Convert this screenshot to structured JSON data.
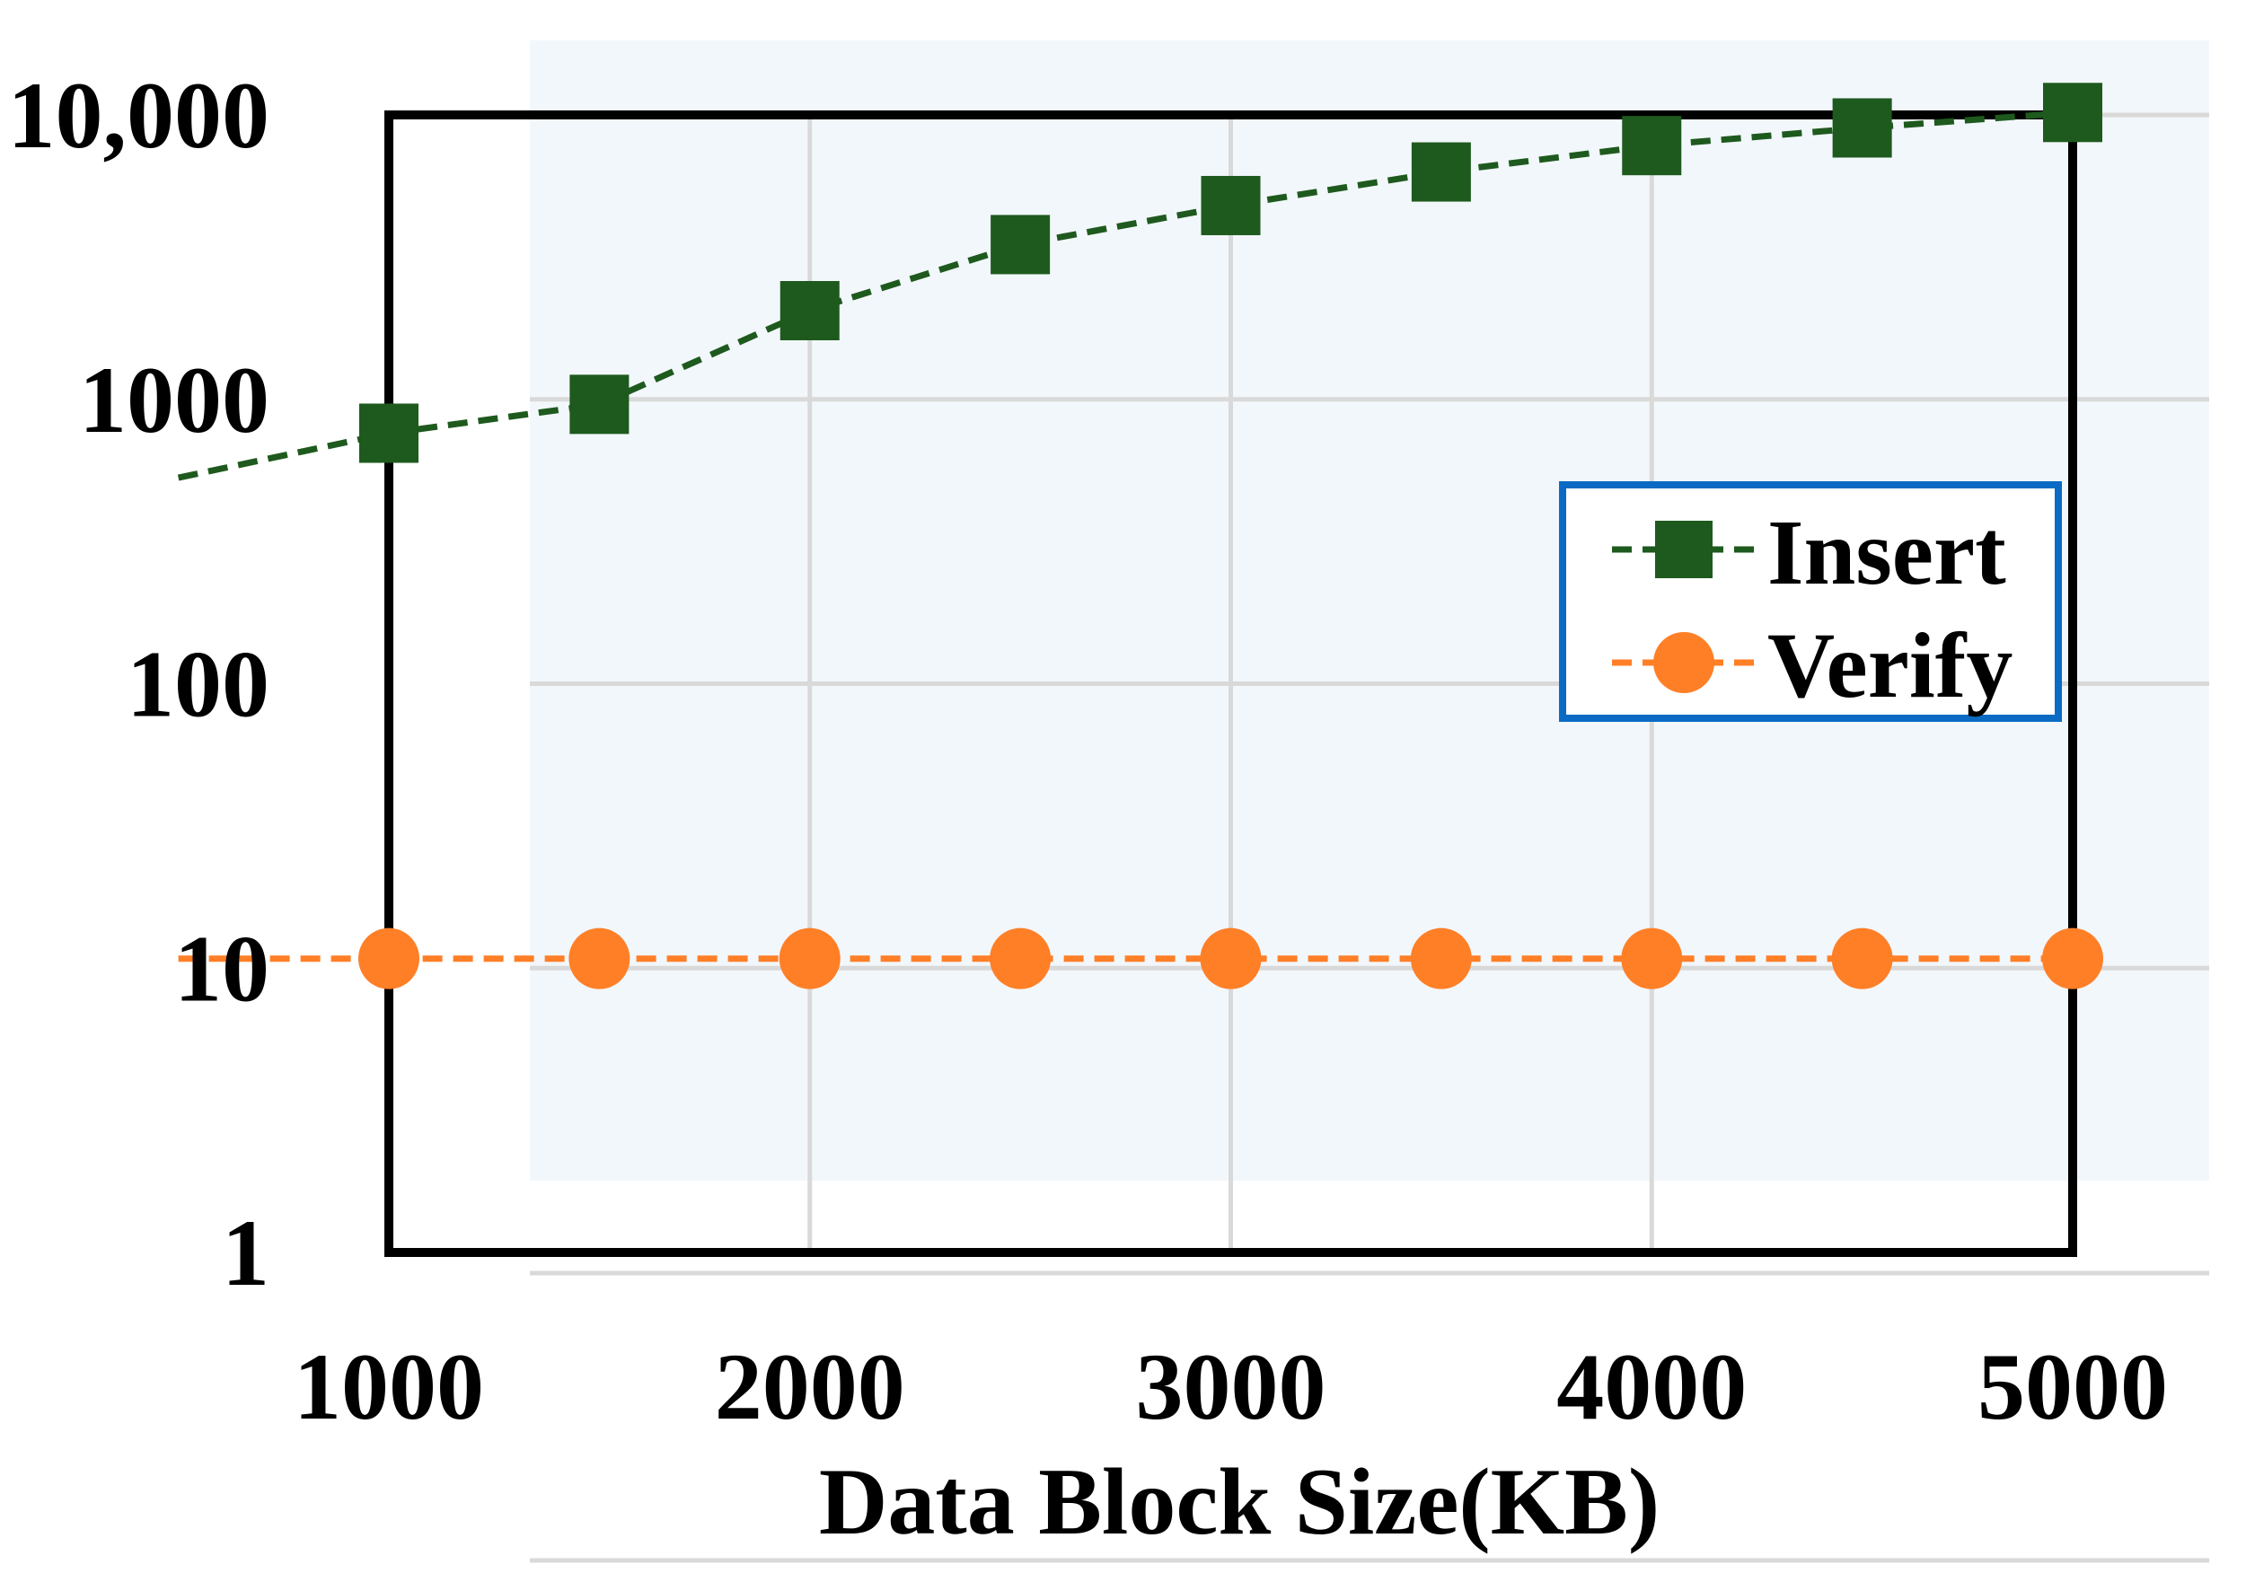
{
  "chart_data": {
    "type": "line",
    "title": "",
    "xlabel": "Data Block Size(KB)",
    "ylabel": "",
    "yscale": "log",
    "xlim": [
      1000,
      5000
    ],
    "ylim": [
      1,
      10000
    ],
    "x_ticks": [
      1000,
      2000,
      3000,
      4000,
      5000
    ],
    "x_tick_labels": [
      "1000",
      "2000",
      "3000",
      "4000",
      "5000"
    ],
    "y_ticks": [
      1,
      10,
      100,
      1000,
      10000
    ],
    "y_tick_labels": [
      "1",
      "10",
      "100",
      "1000",
      "10,000"
    ],
    "grid": true,
    "legend_position": "right",
    "x": [
      1000,
      1500,
      2000,
      2500,
      3000,
      3500,
      4000,
      4500,
      5000
    ],
    "series": [
      {
        "name": "Insert",
        "color": "#1e5a1e",
        "marker": "square",
        "line": "dashed",
        "values": [
          760,
          960,
          2050,
          3500,
          4800,
          6300,
          7800,
          9000,
          10200
        ],
        "trend_start": {
          "x": 500,
          "y": 530
        }
      },
      {
        "name": "Verify",
        "color": "#ff7f27",
        "marker": "circle",
        "line": "dashed",
        "values": [
          10.8,
          10.8,
          10.8,
          10.8,
          10.8,
          10.8,
          10.8,
          10.8,
          10.8
        ],
        "trend_start": {
          "x": 500,
          "y": 10.8
        }
      }
    ]
  }
}
